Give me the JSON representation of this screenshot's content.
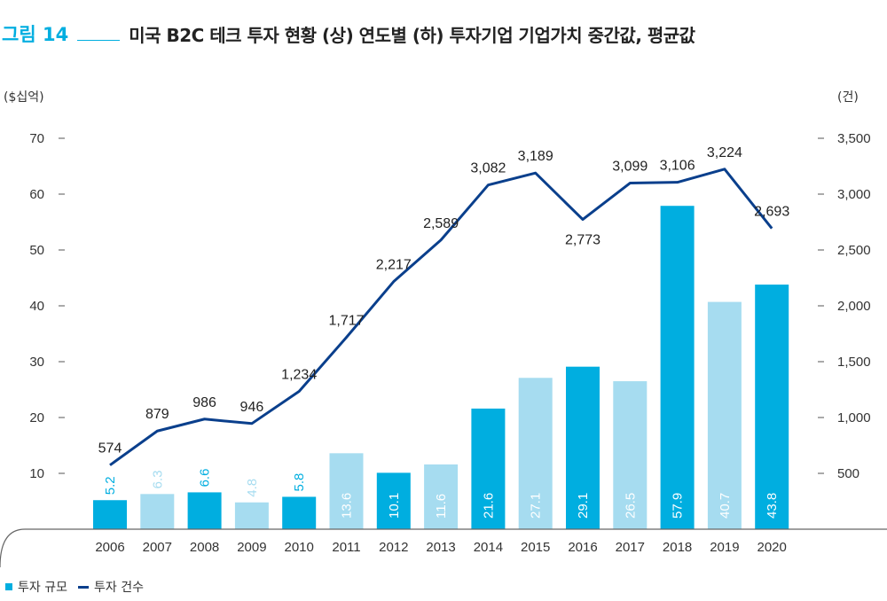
{
  "header": {
    "figure_label": "그림 14",
    "title": "미국 B2C 테크 투자 현황 (상) 연도별 (하) 투자기업 기업가치 중간값, 평균값"
  },
  "colors": {
    "accent": "#00aee0",
    "bar_dark": "#00aee0",
    "bar_light": "#a6dcf0",
    "line": "#0a3f8c",
    "axis": "#555555"
  },
  "chart_data": {
    "type": "bar+line",
    "left_axis_unit": "($십억)",
    "right_axis_unit": "(건)",
    "categories": [
      "2006",
      "2007",
      "2008",
      "2009",
      "2010",
      "2011",
      "2012",
      "2013",
      "2014",
      "2015",
      "2016",
      "2017",
      "2018",
      "2019",
      "2020"
    ],
    "left_ticks": [
      "10",
      "20",
      "30",
      "40",
      "50",
      "60",
      "70"
    ],
    "right_ticks": [
      "500",
      "1,000",
      "1,500",
      "2,000",
      "2,500",
      "3,000",
      "3,500"
    ],
    "ylim_left": [
      0,
      70
    ],
    "ylim_right": [
      0,
      3500
    ],
    "series": [
      {
        "name": "투자 규모",
        "type": "bar",
        "axis": "left",
        "values": [
          5.2,
          6.3,
          6.6,
          4.8,
          5.8,
          13.6,
          10.1,
          11.6,
          21.6,
          27.1,
          29.1,
          26.5,
          57.9,
          40.7,
          43.8
        ],
        "labels": [
          "5.2",
          "6.3",
          "6.6",
          "4.8",
          "5.8",
          "13.6",
          "10.1",
          "11.6",
          "21.6",
          "27.1",
          "29.1",
          "26.5",
          "57.9",
          "40.7",
          "43.8"
        ],
        "shade": [
          "dark",
          "light",
          "dark",
          "light",
          "dark",
          "light",
          "dark",
          "light",
          "dark",
          "light",
          "dark",
          "light",
          "dark",
          "light",
          "dark"
        ]
      },
      {
        "name": "투자 건수",
        "type": "line",
        "axis": "right",
        "values": [
          574,
          879,
          986,
          946,
          1234,
          1717,
          2217,
          2589,
          3082,
          3189,
          2773,
          3099,
          3106,
          3224,
          2693
        ],
        "labels": [
          "574",
          "879",
          "986",
          "946",
          "1,234",
          "1,717",
          "2,217",
          "2,589",
          "3,082",
          "3,189",
          "2,773",
          "3,099",
          "3,106",
          "3,224",
          "2,693"
        ]
      }
    ]
  },
  "legend": {
    "bar_label": "투자 규모",
    "line_label": "투자 건수"
  }
}
